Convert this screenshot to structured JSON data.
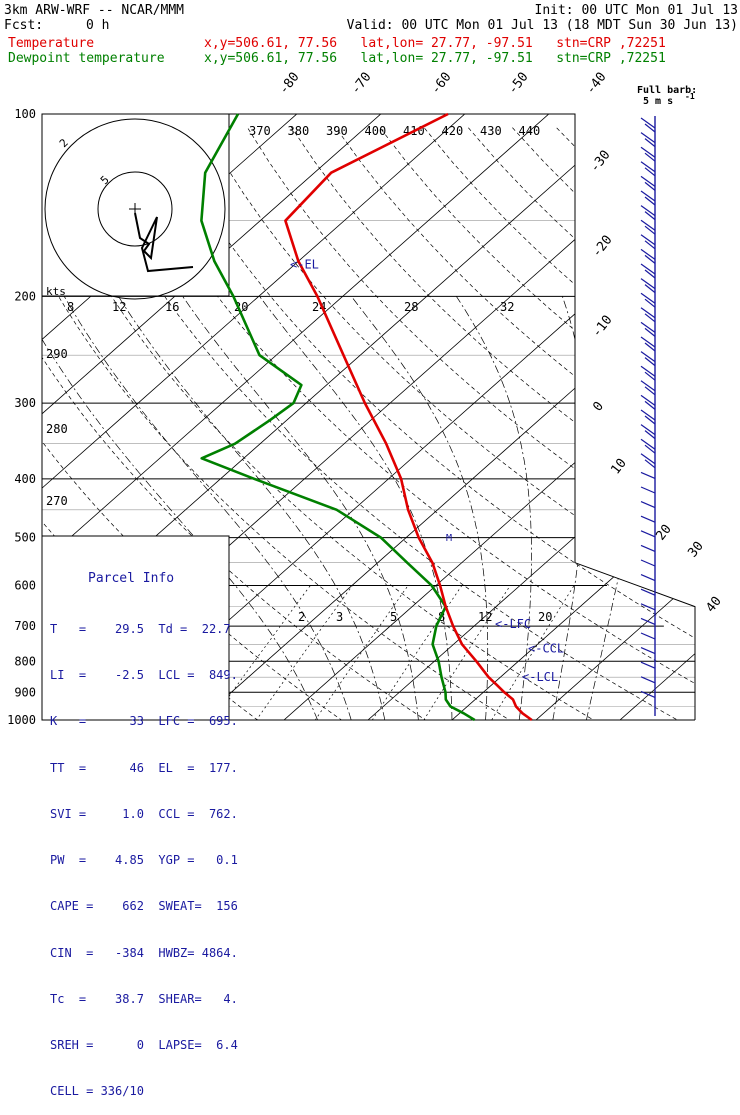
{
  "header": {
    "model": "3km ARW-WRF -- NCAR/MMM",
    "init": "Init: 00 UTC Mon 01 Jul 13",
    "fcst_label": "Fcst:",
    "fcst_value": "0 h",
    "valid": "Valid: 00 UTC Mon 01 Jul 13 (18 MDT Sun 30 Jun 13)",
    "temp_name": "Temperature",
    "temp_loc": "x,y=506.61, 77.56   lat,lon= 27.77, -97.51   stn=CRP ,72251",
    "dew_name": "Dewpoint temperature",
    "dew_loc": "x,y=506.61, 77.56   lat,lon= 27.77, -97.51   stn=CRP ,72251"
  },
  "colors": {
    "temperature": "#e00000",
    "dewpoint": "#008000",
    "annotation": "#1a1aa0",
    "isobar": "#000000",
    "dry_adiabat": "#000000",
    "moist_adiabat": "#000000"
  },
  "chart_data": {
    "type": "line",
    "pressure_levels": [
      100,
      200,
      300,
      400,
      500,
      600,
      700,
      800,
      900,
      1000
    ],
    "skewed_isotherm_labels": [
      "-80",
      "-70",
      "-60",
      "-50",
      "-40",
      "-30",
      "-20",
      "-10",
      "0",
      "10",
      "20",
      "30",
      "40"
    ],
    "theta_e_labels": [
      "370",
      "380",
      "390",
      "400",
      "410",
      "420",
      "430",
      "440"
    ],
    "theta_labels": [
      "290",
      "280",
      "270"
    ],
    "mixing_ratio_labels": [
      "2",
      "3",
      "5",
      "8",
      "12",
      "20"
    ],
    "series": [
      {
        "name": "Temperature",
        "points": [
          {
            "p": 1000,
            "t": 29.5
          },
          {
            "p": 975,
            "t": 27.5
          },
          {
            "p": 950,
            "t": 25.8
          },
          {
            "p": 925,
            "t": 24.5
          },
          {
            "p": 900,
            "t": 22.5
          },
          {
            "p": 875,
            "t": 20.6
          },
          {
            "p": 850,
            "t": 18.6
          },
          {
            "p": 800,
            "t": 15.0
          },
          {
            "p": 750,
            "t": 11.0
          },
          {
            "p": 700,
            "t": 7.5
          },
          {
            "p": 650,
            "t": 4.0
          },
          {
            "p": 600,
            "t": 0.5
          },
          {
            "p": 550,
            "t": -3.5
          },
          {
            "p": 500,
            "t": -8.5
          },
          {
            "p": 450,
            "t": -13.5
          },
          {
            "p": 400,
            "t": -18.5
          },
          {
            "p": 350,
            "t": -25.0
          },
          {
            "p": 300,
            "t": -33.0
          },
          {
            "p": 250,
            "t": -42.0
          },
          {
            "p": 200,
            "t": -53.0
          },
          {
            "p": 175,
            "t": -60.0
          },
          {
            "p": 150,
            "t": -67.0
          },
          {
            "p": 125,
            "t": -68.0
          },
          {
            "p": 100,
            "t": -62.0
          }
        ]
      },
      {
        "name": "Dewpoint temperature",
        "points": [
          {
            "p": 1000,
            "t": 22.7
          },
          {
            "p": 975,
            "t": 20.5
          },
          {
            "p": 950,
            "t": 18.0
          },
          {
            "p": 925,
            "t": 16.5
          },
          {
            "p": 900,
            "t": 15.5
          },
          {
            "p": 850,
            "t": 13.0
          },
          {
            "p": 800,
            "t": 10.5
          },
          {
            "p": 750,
            "t": 7.5
          },
          {
            "p": 700,
            "t": 5.5
          },
          {
            "p": 650,
            "t": 4.0
          },
          {
            "p": 600,
            "t": -0.5
          },
          {
            "p": 550,
            "t": -6.5
          },
          {
            "p": 500,
            "t": -13.0
          },
          {
            "p": 450,
            "t": -22.0
          },
          {
            "p": 400,
            "t": -36.0
          },
          {
            "p": 370,
            "t": -45.0
          },
          {
            "p": 350,
            "t": -43.0
          },
          {
            "p": 320,
            "t": -42.0
          },
          {
            "p": 300,
            "t": -41.5
          },
          {
            "p": 280,
            "t": -43.0
          },
          {
            "p": 250,
            "t": -52.0
          },
          {
            "p": 200,
            "t": -63.0
          },
          {
            "p": 175,
            "t": -70.0
          },
          {
            "p": 150,
            "t": -77.0
          },
          {
            "p": 125,
            "t": -83.0
          },
          {
            "p": 100,
            "t": -87.0
          }
        ]
      }
    ],
    "levels_markers": [
      {
        "label": "<-EL",
        "p": 177
      },
      {
        "label": "<-LFC",
        "p": 695
      },
      {
        "label": "<-CCL",
        "p": 762
      },
      {
        "label": "<-LCL",
        "p": 849
      }
    ],
    "hodograph": {
      "ring_labels": [
        "5",
        "2"
      ],
      "axis_label": "kts",
      "speed_labels": [
        "8",
        "12",
        "16",
        "20",
        "24",
        "28",
        "32"
      ]
    },
    "wind_barb_legend": {
      "title": "Full barb:",
      "value": "5 m s",
      "exponent": "-1"
    }
  },
  "parcel_info": {
    "title": "Parcel Info",
    "rows": [
      "T   =    29.5  Td =  22.7",
      "LI  =    -2.5  LCL =  849.",
      "K   =      33  LFC =  695.",
      "TT  =      46  EL  =  177.",
      "SVI =     1.0  CCL =  762.",
      "PW  =    4.85  YGP =   0.1",
      "CAPE =    662  SWEAT=  156",
      "CIN  =   -384  HWBZ= 4864.",
      "Tc  =    38.7  SHEAR=   4.",
      "SREH =      0  LAPSE=  6.4",
      "CELL = 336/10"
    ]
  }
}
